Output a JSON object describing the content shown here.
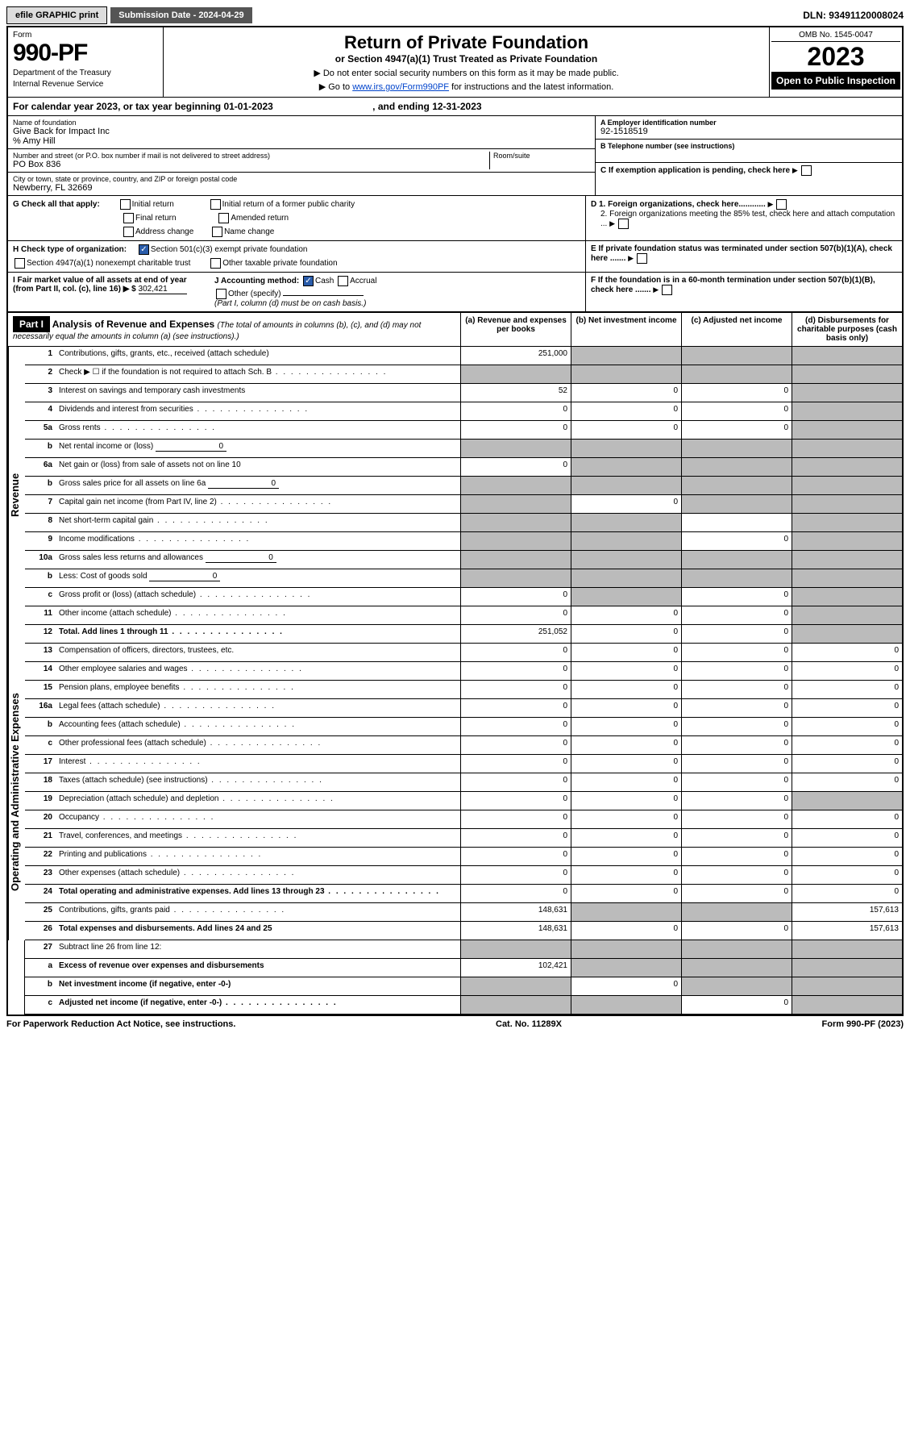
{
  "topbar": {
    "efile": "efile GRAPHIC print",
    "subdate": "Submission Date - 2024-04-29",
    "dln": "DLN: 93491120008024"
  },
  "header": {
    "formword": "Form",
    "formnum": "990-PF",
    "dept": "Department of the Treasury",
    "irs": "Internal Revenue Service",
    "title": "Return of Private Foundation",
    "subtitle": "or Section 4947(a)(1) Trust Treated as Private Foundation",
    "note1": "▶ Do not enter social security numbers on this form as it may be made public.",
    "note2": "▶ Go to ",
    "link": "www.irs.gov/Form990PF",
    "note2b": " for instructions and the latest information.",
    "omb": "OMB No. 1545-0047",
    "year": "2023",
    "open": "Open to Public Inspection"
  },
  "calyear": {
    "pre": "For calendar year 2023, or tax year beginning ",
    "begin": "01-01-2023",
    "mid": " , and ending ",
    "end": "12-31-2023"
  },
  "id": {
    "name_lbl": "Name of foundation",
    "name": "Give Back for Impact Inc",
    "care": "% Amy Hill",
    "addr_lbl": "Number and street (or P.O. box number if mail is not delivered to street address)",
    "addr": "PO Box 836",
    "room_lbl": "Room/suite",
    "room": "",
    "city_lbl": "City or town, state or province, country, and ZIP or foreign postal code",
    "city": "Newberry, FL  32669",
    "a_lbl": "A Employer identification number",
    "a": "92-1518519",
    "b_lbl": "B Telephone number (see instructions)",
    "b": "",
    "c_lbl": "C If exemption application is pending, check here",
    "d1": "D 1. Foreign organizations, check here............",
    "d2": "2. Foreign organizations meeting the 85% test, check here and attach computation ...",
    "e": "E  If private foundation status was terminated under section 507(b)(1)(A), check here .......",
    "f": "F  If the foundation is in a 60-month termination under section 507(b)(1)(B), check here ......."
  },
  "g": {
    "lbl": "G Check all that apply:",
    "opts": [
      "Initial return",
      "Final return",
      "Address change",
      "Initial return of a former public charity",
      "Amended return",
      "Name change"
    ]
  },
  "h": {
    "lbl": "H Check type of organization:",
    "o1": "Section 501(c)(3) exempt private foundation",
    "o2": "Section 4947(a)(1) nonexempt charitable trust",
    "o3": "Other taxable private foundation"
  },
  "i": {
    "lbl": "I Fair market value of all assets at end of year (from Part II, col. (c), line 16) ▶ $",
    "val": "302,421"
  },
  "j": {
    "lbl": "J Accounting method:",
    "cash": "Cash",
    "accrual": "Accrual",
    "other": "Other (specify)",
    "note": "(Part I, column (d) must be on cash basis.)"
  },
  "part1": {
    "label": "Part I",
    "title": "Analysis of Revenue and Expenses ",
    "note": "(The total of amounts in columns (b), (c), and (d) may not necessarily equal the amounts in column (a) (see instructions).)",
    "cols": [
      "(a)    Revenue and expenses per books",
      "(b)    Net investment income",
      "(c)    Adjusted net income",
      "(d)    Disbursements for charitable purposes (cash basis only)"
    ]
  },
  "sides": {
    "rev": "Revenue",
    "ops": "Operating and Administrative Expenses"
  },
  "rows": {
    "r1": {
      "n": "1",
      "d": "Contributions, gifts, grants, etc., received (attach schedule)",
      "a": "251,000",
      "grey": [
        "b",
        "c",
        "d"
      ]
    },
    "r2": {
      "n": "2",
      "d": "Check ▶ ☐ if the foundation is not required to attach Sch. B",
      "dots": true,
      "grey": [
        "a",
        "b",
        "c",
        "d"
      ]
    },
    "r3": {
      "n": "3",
      "d": "Interest on savings and temporary cash investments",
      "a": "52",
      "b": "0",
      "c": "0",
      "grey": [
        "d"
      ]
    },
    "r4": {
      "n": "4",
      "d": "Dividends and interest from securities",
      "dots": true,
      "a": "0",
      "b": "0",
      "c": "0",
      "grey": [
        "d"
      ]
    },
    "r5a": {
      "n": "5a",
      "d": "Gross rents",
      "dots": true,
      "a": "0",
      "b": "0",
      "c": "0",
      "grey": [
        "d"
      ]
    },
    "r5b": {
      "n": "b",
      "d": "Net rental income or (loss)",
      "fill": "0",
      "grey": [
        "a",
        "b",
        "c",
        "d"
      ]
    },
    "r6a": {
      "n": "6a",
      "d": "Net gain or (loss) from sale of assets not on line 10",
      "a": "0",
      "grey": [
        "b",
        "c",
        "d"
      ]
    },
    "r6b": {
      "n": "b",
      "d": "Gross sales price for all assets on line 6a",
      "fill": "0",
      "grey": [
        "a",
        "b",
        "c",
        "d"
      ]
    },
    "r7": {
      "n": "7",
      "d": "Capital gain net income (from Part IV, line 2)",
      "dots": true,
      "grey": [
        "a",
        "c",
        "d"
      ],
      "b": "0"
    },
    "r8": {
      "n": "8",
      "d": "Net short-term capital gain",
      "dots": true,
      "grey": [
        "a",
        "b",
        "d"
      ]
    },
    "r9": {
      "n": "9",
      "d": "Income modifications",
      "dots": true,
      "grey": [
        "a",
        "b",
        "d"
      ],
      "c": "0"
    },
    "r10a": {
      "n": "10a",
      "d": "Gross sales less returns and allowances",
      "fill": "0",
      "grey": [
        "a",
        "b",
        "c",
        "d"
      ]
    },
    "r10b": {
      "n": "b",
      "d": "Less: Cost of goods sold",
      "dots": true,
      "fill": "0",
      "grey": [
        "a",
        "b",
        "c",
        "d"
      ]
    },
    "r10c": {
      "n": "c",
      "d": "Gross profit or (loss) (attach schedule)",
      "dots": true,
      "a": "0",
      "grey": [
        "b",
        "d"
      ],
      "c": "0"
    },
    "r11": {
      "n": "11",
      "d": "Other income (attach schedule)",
      "dots": true,
      "a": "0",
      "b": "0",
      "c": "0",
      "grey": [
        "d"
      ]
    },
    "r12": {
      "n": "12",
      "d": "Total. Add lines 1 through 11",
      "dots": true,
      "bold": true,
      "a": "251,052",
      "b": "0",
      "c": "0",
      "grey": [
        "d"
      ]
    },
    "r13": {
      "n": "13",
      "d": "Compensation of officers, directors, trustees, etc.",
      "a": "0",
      "b": "0",
      "c": "0",
      "dd": "0"
    },
    "r14": {
      "n": "14",
      "d": "Other employee salaries and wages",
      "dots": true,
      "a": "0",
      "b": "0",
      "c": "0",
      "dd": "0"
    },
    "r15": {
      "n": "15",
      "d": "Pension plans, employee benefits",
      "dots": true,
      "a": "0",
      "b": "0",
      "c": "0",
      "dd": "0"
    },
    "r16a": {
      "n": "16a",
      "d": "Legal fees (attach schedule)",
      "dots": true,
      "a": "0",
      "b": "0",
      "c": "0",
      "dd": "0"
    },
    "r16b": {
      "n": "b",
      "d": "Accounting fees (attach schedule)",
      "dots": true,
      "a": "0",
      "b": "0",
      "c": "0",
      "dd": "0"
    },
    "r16c": {
      "n": "c",
      "d": "Other professional fees (attach schedule)",
      "dots": true,
      "a": "0",
      "b": "0",
      "c": "0",
      "dd": "0"
    },
    "r17": {
      "n": "17",
      "d": "Interest",
      "dots": true,
      "a": "0",
      "b": "0",
      "c": "0",
      "dd": "0"
    },
    "r18": {
      "n": "18",
      "d": "Taxes (attach schedule) (see instructions)",
      "dots": true,
      "a": "0",
      "b": "0",
      "c": "0",
      "dd": "0"
    },
    "r19": {
      "n": "19",
      "d": "Depreciation (attach schedule) and depletion",
      "dots": true,
      "a": "0",
      "b": "0",
      "c": "0",
      "grey": [
        "d"
      ]
    },
    "r20": {
      "n": "20",
      "d": "Occupancy",
      "dots": true,
      "a": "0",
      "b": "0",
      "c": "0",
      "dd": "0"
    },
    "r21": {
      "n": "21",
      "d": "Travel, conferences, and meetings",
      "dots": true,
      "a": "0",
      "b": "0",
      "c": "0",
      "dd": "0"
    },
    "r22": {
      "n": "22",
      "d": "Printing and publications",
      "dots": true,
      "a": "0",
      "b": "0",
      "c": "0",
      "dd": "0"
    },
    "r23": {
      "n": "23",
      "d": "Other expenses (attach schedule)",
      "dots": true,
      "a": "0",
      "b": "0",
      "c": "0",
      "dd": "0"
    },
    "r24": {
      "n": "24",
      "d": "Total operating and administrative expenses. Add lines 13 through 23",
      "dots": true,
      "bold": true,
      "a": "0",
      "b": "0",
      "c": "0",
      "dd": "0"
    },
    "r25": {
      "n": "25",
      "d": "Contributions, gifts, grants paid",
      "dots": true,
      "a": "148,631",
      "grey": [
        "b",
        "c"
      ],
      "dd": "157,613"
    },
    "r26": {
      "n": "26",
      "d": "Total expenses and disbursements. Add lines 24 and 25",
      "bold": true,
      "a": "148,631",
      "b": "0",
      "c": "0",
      "dd": "157,613"
    },
    "r27": {
      "n": "27",
      "d": "Subtract line 26 from line 12:",
      "grey": [
        "a",
        "b",
        "c",
        "d"
      ]
    },
    "r27a": {
      "n": "a",
      "d": "Excess of revenue over expenses and disbursements",
      "bold": true,
      "a": "102,421",
      "grey": [
        "b",
        "c",
        "d"
      ]
    },
    "r27b": {
      "n": "b",
      "d": "Net investment income (if negative, enter -0-)",
      "bold": true,
      "grey": [
        "a",
        "c",
        "d"
      ],
      "b": "0"
    },
    "r27c": {
      "n": "c",
      "d": "Adjusted net income (if negative, enter -0-)",
      "dots": true,
      "bold": true,
      "grey": [
        "a",
        "b",
        "d"
      ],
      "c": "0"
    }
  },
  "footer": {
    "l": "For Paperwork Reduction Act Notice, see instructions.",
    "c": "Cat. No. 11289X",
    "r": "Form 990-PF (2023)"
  }
}
